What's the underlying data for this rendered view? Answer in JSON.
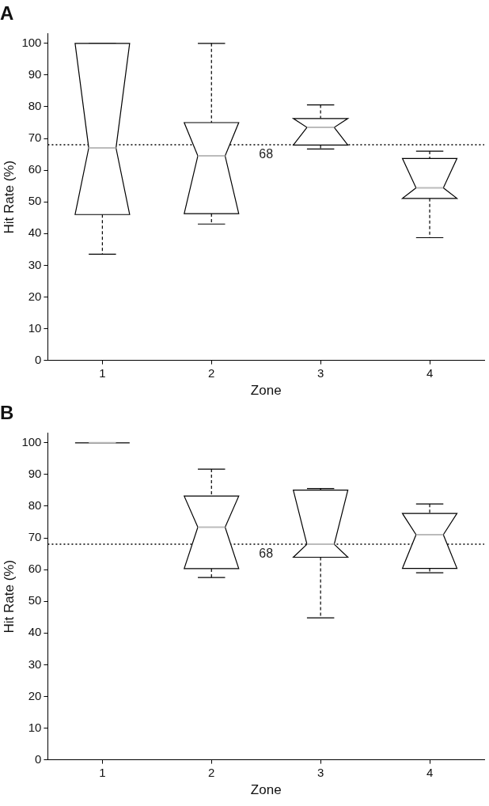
{
  "chart_data": [
    {
      "type": "box",
      "title": "A",
      "xlabel": "Zone",
      "ylabel": "Hit Rate (%)",
      "categories": [
        "1",
        "2",
        "3",
        "4"
      ],
      "boxes": [
        {
          "low": 33.5,
          "q1": 46,
          "median": 67,
          "q3": 100,
          "high": 100
        },
        {
          "low": 43,
          "q1": 46.3,
          "median": 64.5,
          "q3": 75,
          "high": 100
        },
        {
          "low": 66.7,
          "q1": 67.9,
          "median": 73.5,
          "q3": 76.3,
          "high": 80.6
        },
        {
          "low": 38.7,
          "q1": 51.1,
          "median": 54.4,
          "q3": 63.7,
          "high": 66
        }
      ],
      "ylim": [
        0,
        103
      ],
      "yticks": [
        0,
        10,
        20,
        30,
        40,
        50,
        60,
        70,
        80,
        90,
        100
      ],
      "grid": false,
      "ref_lines": [
        {
          "axis": "y",
          "value": 68,
          "label": "68",
          "line_style": "dotted",
          "color": "#000000"
        }
      ]
    },
    {
      "type": "box",
      "title": "B",
      "xlabel": "Zone",
      "ylabel": "Hit Rate (%)",
      "categories": [
        "1",
        "2",
        "3",
        "4"
      ],
      "boxes": [
        {
          "low": 100,
          "q1": 100,
          "median": 100,
          "q3": 100,
          "high": 100
        },
        {
          "low": 57.5,
          "q1": 60.3,
          "median": 73.4,
          "q3": 83.2,
          "high": 91.7
        },
        {
          "low": 44.8,
          "q1": 63.9,
          "median": 68,
          "q3": 85.1,
          "high": 85.6
        },
        {
          "low": 59,
          "q1": 60.4,
          "median": 71,
          "q3": 77.7,
          "high": 80.7
        }
      ],
      "ylim": [
        0,
        103
      ],
      "yticks": [
        0,
        10,
        20,
        30,
        40,
        50,
        60,
        70,
        80,
        90,
        100
      ],
      "grid": false,
      "ref_lines": [
        {
          "axis": "y",
          "value": 68,
          "label": "68",
          "line_style": "dotted",
          "color": "#000000"
        }
      ]
    }
  ]
}
